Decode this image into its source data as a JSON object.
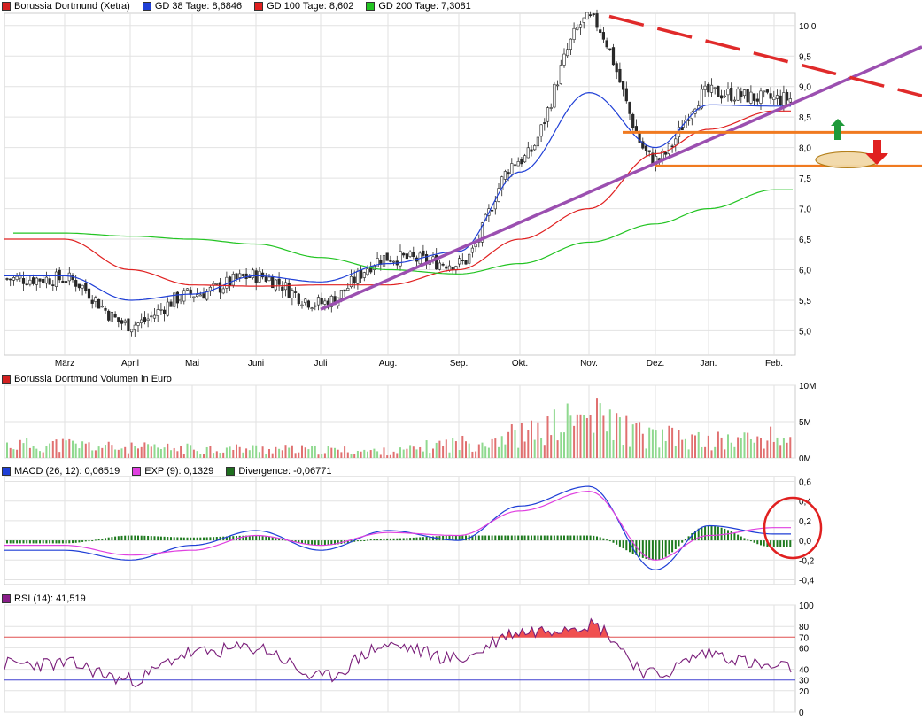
{
  "panels": {
    "price": {
      "legend": [
        {
          "label": "Borussia Dortmund (Xetra)",
          "color": "#d32020"
        },
        {
          "label": "GD 38 Tage: 8,6846",
          "color": "#1f3fd6"
        },
        {
          "label": "GD 100 Tage: 8,602",
          "color": "#e02020"
        },
        {
          "label": "GD 200 Tage: 7,3081",
          "color": "#22c422"
        }
      ],
      "yticks": [
        "10,0",
        "9,5",
        "9,0",
        "8,5",
        "8,0",
        "7,5",
        "7,0",
        "6,5",
        "6,0",
        "5,5",
        "5,0"
      ],
      "months": [
        "März",
        "April",
        "Mai",
        "Juni",
        "Juli",
        "Aug.",
        "Sep.",
        "Okt.",
        "Nov.",
        "Dez.",
        "Jan.",
        "Feb."
      ]
    },
    "volume": {
      "legend": [
        {
          "label": "Borussia Dortmund Volumen in Euro",
          "color": "#d32020"
        }
      ],
      "yticks": [
        "10M",
        "5M",
        "0M"
      ]
    },
    "macd": {
      "legend": [
        {
          "label": "MACD (26, 12): 0,06519",
          "color": "#1f3fd6"
        },
        {
          "label": "EXP (9): 0,1329",
          "color": "#e040e0"
        },
        {
          "label": "Divergence: -0,06771",
          "color": "#1e6e1e"
        }
      ],
      "yticks": [
        "0,6",
        "0,4",
        "0,2",
        "0,0",
        "-0,2",
        "-0,4"
      ]
    },
    "rsi": {
      "legend": [
        {
          "label": "RSI (14): 41,519",
          "color": "#8a1e8a"
        }
      ],
      "yticks": [
        "100",
        "80",
        "70",
        "60",
        "40",
        "30",
        "20",
        "0"
      ]
    }
  },
  "chart_data": [
    {
      "type": "line",
      "subtype": "candlestick-with-moving-averages",
      "title": "Borussia Dortmund (Xetra)",
      "x": [
        "März",
        "April",
        "Mai",
        "Juni",
        "Juli",
        "Aug.",
        "Sep.",
        "Okt.",
        "Nov.",
        "Dez.",
        "Jan.",
        "Feb."
      ],
      "ylim": [
        4.6,
        10.2
      ],
      "series": [
        {
          "name": "Borussia Dortmund (Xetra)",
          "values": [
            5.85,
            5.1,
            5.6,
            5.9,
            5.45,
            6.2,
            6.1,
            7.8,
            10.1,
            7.8,
            8.9,
            8.8
          ]
        },
        {
          "name": "GD 38 Tage: 8,6846",
          "values": [
            5.9,
            5.5,
            5.6,
            5.9,
            5.8,
            6.1,
            6.3,
            7.6,
            8.9,
            8.0,
            8.7,
            8.68
          ]
        },
        {
          "name": "GD 100 Tage: 8,602",
          "values": [
            6.5,
            6.0,
            5.75,
            5.73,
            5.75,
            5.75,
            6.0,
            6.5,
            7.0,
            7.9,
            8.3,
            8.6
          ]
        },
        {
          "name": "GD 200 Tage: 7,3081",
          "values": [
            6.6,
            6.55,
            6.5,
            6.42,
            6.2,
            6.0,
            5.93,
            6.1,
            6.45,
            6.75,
            7.0,
            7.31
          ]
        }
      ],
      "annotations": [
        "upper downtrend line",
        "rising support line",
        "horizontal lines 8.3 and 7.7",
        "green up arrow",
        "red down arrow",
        "orange ellipse"
      ]
    },
    {
      "type": "bar",
      "title": "Borussia Dortmund Volumen in Euro",
      "categories": [
        "März",
        "April",
        "Mai",
        "Juni",
        "Juli",
        "Aug.",
        "Sep.",
        "Okt.",
        "Nov.",
        "Dez.",
        "Jan.",
        "Feb."
      ],
      "values": [
        2.0,
        1.5,
        1.4,
        1.4,
        1.2,
        1.0,
        2.2,
        3.5,
        6.0,
        3.2,
        2.5,
        3.0
      ],
      "ylim": [
        0,
        10
      ]
    },
    {
      "type": "line",
      "title": "MACD (26, 12)",
      "x": [
        "März",
        "April",
        "Mai",
        "Juni",
        "Juli",
        "Aug.",
        "Sep.",
        "Okt.",
        "Nov.",
        "Dez.",
        "Jan.",
        "Feb."
      ],
      "ylim": [
        -0.4,
        0.6
      ],
      "series": [
        {
          "name": "MACD (26, 12): 0,06519",
          "values": [
            -0.1,
            -0.2,
            -0.05,
            0.1,
            -0.1,
            0.1,
            0.0,
            0.35,
            0.55,
            -0.3,
            0.15,
            0.065
          ]
        },
        {
          "name": "EXP (9): 0,1329",
          "values": [
            -0.05,
            -0.15,
            -0.1,
            0.05,
            -0.05,
            0.08,
            0.05,
            0.3,
            0.5,
            -0.2,
            0.05,
            0.13
          ]
        },
        {
          "name": "Divergence: -0,06771",
          "values": [
            -0.03,
            0.05,
            0.03,
            0.05,
            -0.05,
            0.02,
            0.05,
            0.05,
            0.05,
            -0.2,
            0.15,
            -0.07
          ]
        }
      ]
    },
    {
      "type": "line",
      "title": "RSI (14)",
      "x": [
        "März",
        "April",
        "Mai",
        "Juni",
        "Juli",
        "Aug.",
        "Sep.",
        "Okt.",
        "Nov.",
        "Dez.",
        "Jan.",
        "Feb."
      ],
      "ylim": [
        0,
        100
      ],
      "series": [
        {
          "name": "RSI (14): 41,519",
          "values": [
            45,
            30,
            55,
            60,
            32,
            62,
            50,
            75,
            82,
            35,
            55,
            41.5
          ]
        }
      ],
      "levels": [
        70,
        30
      ]
    }
  ]
}
